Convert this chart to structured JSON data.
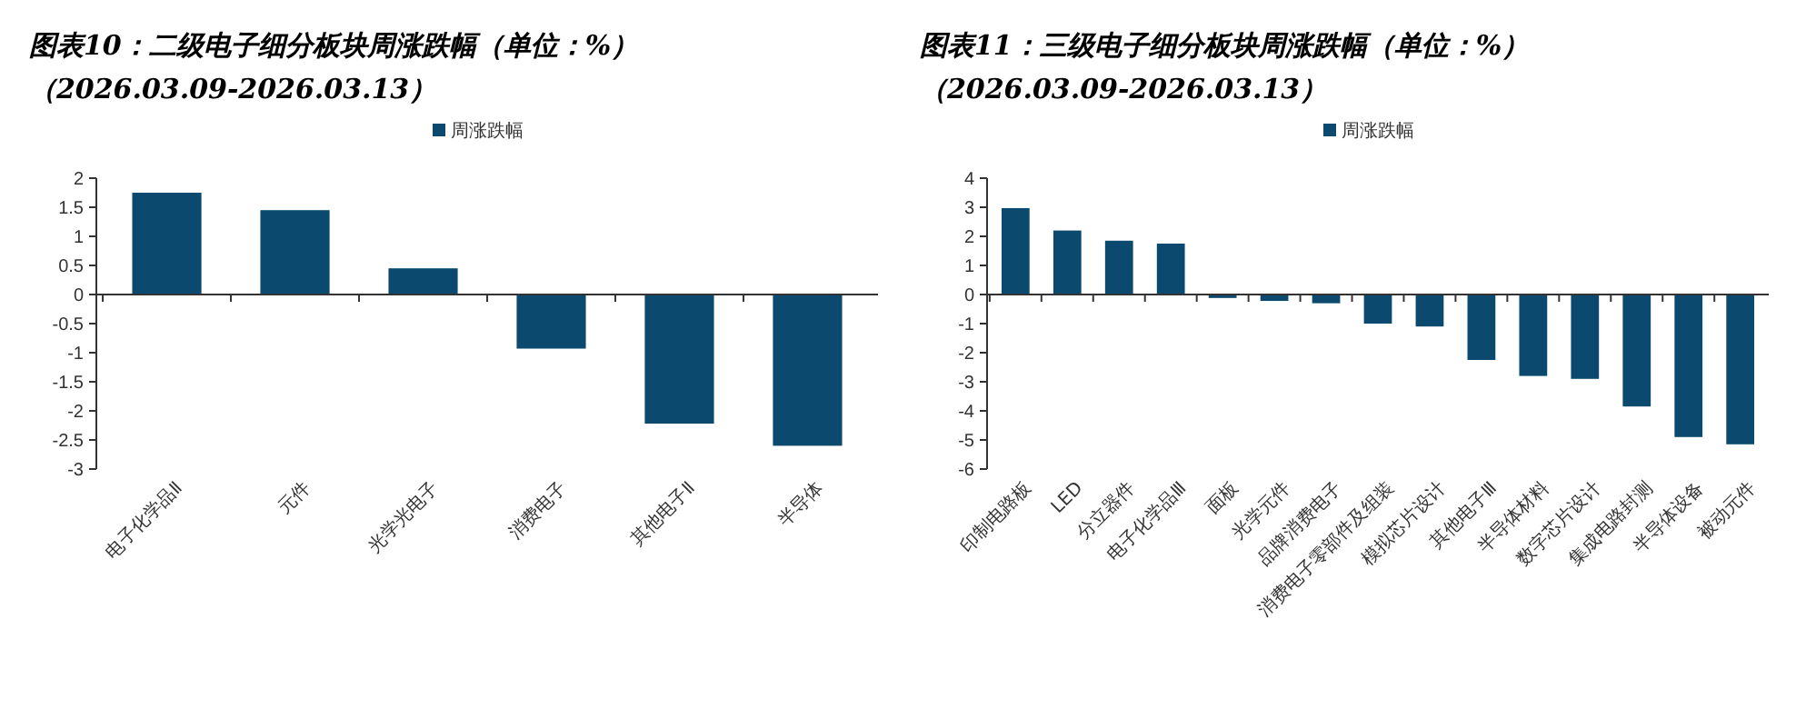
{
  "chart_data": [
    {
      "type": "bar",
      "title": "图表10：二级电子细分板块周涨跌幅（单位：%）",
      "subtitle": "（2026.03.09-2026.03.13）",
      "categories": [
        "电子化学品Ⅱ",
        "元件",
        "光学光电子",
        "消费电子",
        "其他电子Ⅱ",
        "半导体"
      ],
      "series": [
        {
          "name": "周涨跌幅",
          "color": "#0b4a6e",
          "values": [
            1.75,
            1.45,
            0.45,
            -0.93,
            -2.22,
            -2.6
          ]
        }
      ],
      "ylim": [
        -3,
        2
      ],
      "yticks": [
        -3,
        -2.5,
        -2,
        -1.5,
        -1,
        -0.5,
        0,
        0.5,
        1,
        1.5,
        2
      ],
      "legend": "top"
    },
    {
      "type": "bar",
      "title": "图表11：三级电子细分板块周涨跌幅（单位：%）",
      "subtitle": "（2026.03.09-2026.03.13）",
      "categories": [
        "印制电路板",
        "LED",
        "分立器件",
        "电子化学品Ⅲ",
        "面板",
        "光学元件",
        "品牌消费电子",
        "消费电子零部件及组装",
        "模拟芯片设计",
        "其他电子Ⅲ",
        "半导体材料",
        "数字芯片设计",
        "集成电路封测",
        "半导体设备",
        "被动元件"
      ],
      "series": [
        {
          "name": "周涨跌幅",
          "color": "#0b4a6e",
          "values": [
            2.97,
            2.2,
            1.85,
            1.75,
            -0.12,
            -0.22,
            -0.3,
            -1.0,
            -1.1,
            -2.25,
            -2.8,
            -2.9,
            -3.85,
            -4.9,
            -5.15
          ]
        }
      ],
      "ylim": [
        -6,
        4
      ],
      "yticks": [
        -6,
        -5,
        -4,
        -3,
        -2,
        -1,
        0,
        1,
        2,
        3,
        4
      ],
      "legend": "top"
    }
  ]
}
